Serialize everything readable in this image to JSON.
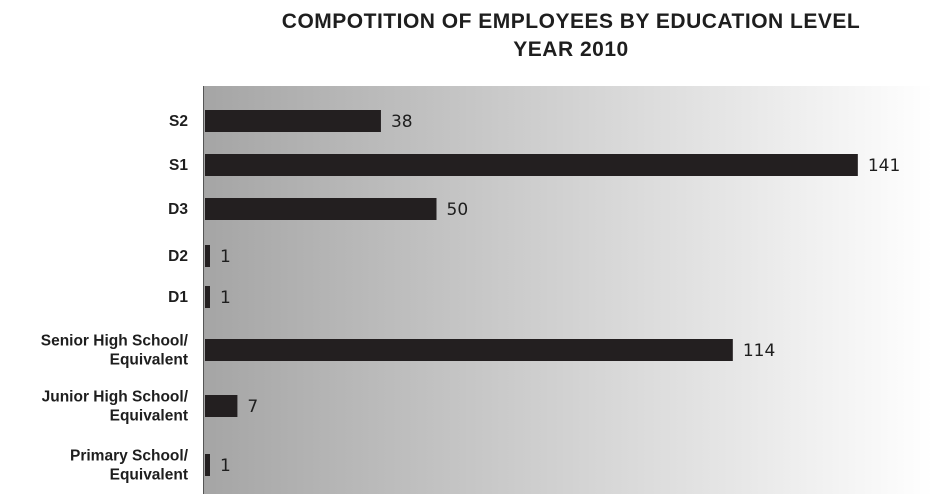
{
  "chart_data": {
    "type": "bar",
    "orientation": "horizontal",
    "title": "COMPOTITION OF EMPLOYEES BY EDUCATION LEVEL",
    "subtitle": "YEAR 2010",
    "categories": [
      "S2",
      "S1",
      "D3",
      "D2",
      "D1",
      "Senior High School/\nEquivalent",
      "Junior High School/\nEquivalent",
      "Primary School/\nEquivalent"
    ],
    "values": [
      38,
      141,
      50,
      1,
      1,
      114,
      7,
      1
    ],
    "xlim": [
      0,
      152
    ],
    "grid": false,
    "legend": "none",
    "colors": {
      "bar": "#231f20",
      "plot_gradient_start": "#a5a5a5",
      "plot_gradient_end": "#ffffff",
      "text": "#1e1e1e"
    }
  }
}
